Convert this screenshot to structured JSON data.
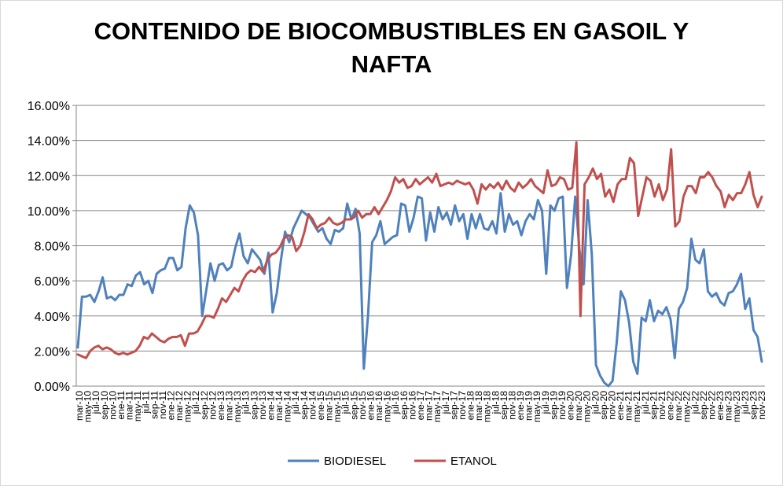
{
  "chart_data": {
    "type": "line",
    "title_lines": [
      "CONTENIDO DE BIOCOMBUSTIBLES EN GASOIL Y",
      "NAFTA"
    ],
    "ylim": [
      0,
      16
    ],
    "yticks": [
      0,
      2,
      4,
      6,
      8,
      10,
      12,
      14,
      16
    ],
    "ytick_labels": [
      "0.00%",
      "2.00%",
      "4.00%",
      "6.00%",
      "8.00%",
      "10.00%",
      "12.00%",
      "14.00%",
      "16.00%"
    ],
    "grid": "horizontal",
    "legend_position": "bottom",
    "x_labels": [
      "mar-10",
      "may-10",
      "jul-10",
      "sep-10",
      "nov-10",
      "ene-11",
      "mar-11",
      "may-11",
      "jul-11",
      "sep-11",
      "nov-11",
      "ene-12",
      "mar-12",
      "may-12",
      "jul-12",
      "sep-12",
      "nov-12",
      "ene-13",
      "mar-13",
      "may-13",
      "jul-13",
      "sep-13",
      "nov-13",
      "ene-14",
      "mar-14",
      "may-14",
      "jul-14",
      "sep-14",
      "nov-14",
      "ene-15",
      "mar-15",
      "may-15",
      "jul-15",
      "sep-15",
      "nov-15",
      "ene-16",
      "mar-16",
      "may-16",
      "jul-16",
      "sep-16",
      "nov-16",
      "ene-17",
      "mar-17",
      "may-17",
      "jul-17",
      "sep-17",
      "nov-17",
      "ene-18",
      "mar-18",
      "may-18",
      "jul-18",
      "sep-18",
      "nov-18",
      "ene-19",
      "mar-19",
      "may-19",
      "jul-19",
      "sep-19",
      "nov-19",
      "ene-20",
      "mar-20",
      "may-20",
      "jul-20",
      "sep-20",
      "nov-20",
      "ene-21",
      "mar-21",
      "may-21",
      "jul-21",
      "sep-21",
      "nov-21",
      "ene-22",
      "mar-22",
      "may-22",
      "jul-22",
      "sep-22",
      "nov-22",
      "ene-23",
      "mar-23",
      "may-23",
      "jul-23",
      "sep-23",
      "nov-23"
    ],
    "series": [
      {
        "name": "BIODIESEL",
        "color": "#4f81bd",
        "values": [
          2.2,
          5.1,
          5.1,
          5.2,
          4.8,
          5.4,
          6.2,
          5.0,
          5.1,
          4.9,
          5.2,
          5.2,
          5.8,
          5.7,
          6.3,
          6.5,
          5.8,
          6.0,
          5.3,
          6.4,
          6.6,
          6.7,
          7.3,
          7.3,
          6.6,
          6.8,
          9.0,
          10.3,
          9.9,
          8.6,
          4.0,
          5.5,
          7.0,
          6.0,
          6.9,
          7.0,
          6.6,
          6.8,
          7.9,
          8.7,
          7.4,
          7.0,
          7.8,
          7.5,
          7.2,
          6.4,
          7.6,
          4.2,
          5.3,
          7.2,
          8.8,
          8.2,
          9.0,
          9.5,
          10.0,
          9.8,
          9.6,
          9.2,
          8.8,
          9.0,
          8.4,
          8.1,
          8.9,
          8.8,
          9.0,
          10.4,
          9.5,
          10.1,
          8.7,
          1.0,
          4.0,
          8.2,
          8.6,
          9.4,
          8.1,
          8.3,
          8.5,
          8.6,
          10.4,
          10.3,
          8.8,
          9.6,
          10.8,
          10.7,
          8.3,
          9.9,
          8.8,
          10.2,
          9.5,
          9.9,
          9.2,
          10.3,
          9.4,
          9.8,
          8.4,
          9.8,
          9.0,
          9.8,
          9.0,
          8.9,
          9.4,
          8.7,
          11.0,
          8.8,
          9.8,
          9.2,
          9.4,
          8.6,
          9.4,
          9.8,
          9.5,
          10.6,
          10.0,
          6.4,
          10.3,
          10.0,
          10.7,
          10.8,
          5.6,
          7.5,
          10.8,
          7.8,
          5.8,
          10.6,
          7.5,
          1.2,
          0.6,
          0.2,
          0.0,
          0.3,
          2.5,
          5.4,
          4.9,
          3.6,
          1.4,
          0.7,
          3.9,
          3.7,
          4.9,
          3.7,
          4.3,
          4.1,
          4.5,
          3.8,
          1.6,
          4.4,
          4.8,
          5.6,
          8.4,
          7.2,
          7.0,
          7.8,
          5.4,
          5.1,
          5.3,
          4.8,
          4.6,
          5.3,
          5.4,
          5.8,
          6.4,
          4.4,
          5.0,
          3.2,
          2.8,
          1.4
        ]
      },
      {
        "name": "ETANOL",
        "color": "#c0504d",
        "values": [
          1.8,
          1.7,
          1.6,
          2.0,
          2.2,
          2.3,
          2.1,
          2.2,
          2.1,
          1.9,
          1.8,
          1.9,
          1.8,
          1.9,
          2.0,
          2.3,
          2.8,
          2.7,
          3.0,
          2.8,
          2.6,
          2.5,
          2.7,
          2.8,
          2.8,
          2.9,
          2.3,
          3.0,
          3.0,
          3.1,
          3.5,
          4.0,
          4.0,
          3.9,
          4.4,
          5.0,
          4.8,
          5.2,
          5.6,
          5.4,
          6.0,
          6.4,
          6.6,
          6.5,
          6.8,
          6.5,
          7.2,
          7.5,
          7.6,
          7.9,
          8.4,
          8.6,
          8.5,
          7.7,
          8.0,
          8.8,
          9.8,
          9.5,
          9.0,
          9.2,
          9.3,
          9.6,
          9.3,
          9.2,
          9.3,
          9.5,
          9.5,
          9.6,
          10.0,
          9.6,
          9.8,
          9.8,
          10.2,
          9.8,
          10.2,
          10.6,
          11.1,
          11.9,
          11.6,
          11.8,
          11.3,
          11.4,
          11.8,
          11.5,
          11.7,
          11.9,
          11.6,
          12.1,
          11.4,
          11.5,
          11.6,
          11.5,
          11.7,
          11.6,
          11.5,
          11.6,
          11.2,
          10.4,
          11.5,
          11.2,
          11.5,
          11.3,
          11.6,
          11.2,
          11.7,
          11.3,
          11.1,
          11.6,
          11.3,
          11.5,
          11.8,
          11.4,
          11.2,
          11.0,
          12.3,
          11.4,
          11.5,
          11.9,
          11.8,
          11.2,
          11.3,
          13.9,
          4.0,
          11.5,
          11.9,
          12.4,
          11.8,
          12.1,
          10.8,
          11.2,
          10.5,
          11.5,
          11.8,
          11.8,
          13.0,
          12.7,
          9.7,
          10.8,
          11.9,
          11.7,
          10.8,
          11.5,
          10.6,
          11.2,
          13.5,
          9.1,
          9.4,
          10.8,
          11.4,
          11.4,
          11.0,
          11.9,
          11.9,
          12.2,
          11.9,
          11.4,
          11.1,
          10.2,
          10.9,
          10.6,
          11.0,
          11.0,
          11.5,
          12.2,
          10.9,
          10.2,
          10.8
        ]
      }
    ]
  }
}
